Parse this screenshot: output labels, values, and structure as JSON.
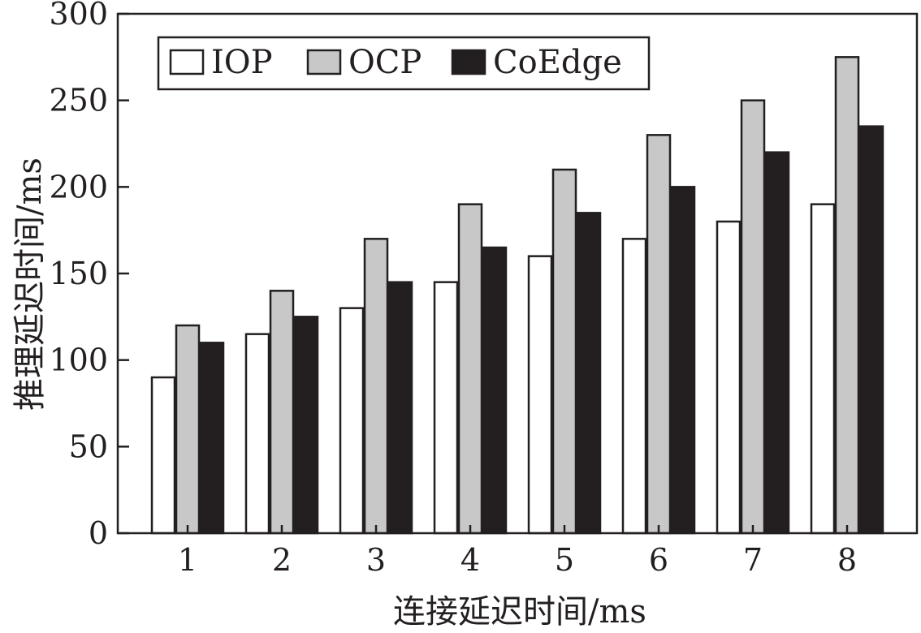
{
  "chart_data": {
    "type": "bar",
    "categories": [
      "1",
      "2",
      "3",
      "4",
      "5",
      "6",
      "7",
      "8"
    ],
    "series": [
      {
        "name": "IOP",
        "color": "#ffffff",
        "values": [
          90,
          115,
          130,
          145,
          160,
          170,
          180,
          190
        ]
      },
      {
        "name": "OCP",
        "color": "#c8c8c8",
        "values": [
          120,
          140,
          170,
          190,
          210,
          230,
          250,
          275
        ]
      },
      {
        "name": "CoEdge",
        "color": "#231f20",
        "values": [
          110,
          125,
          145,
          165,
          185,
          200,
          220,
          235
        ]
      }
    ],
    "xlabel": "连接延迟时间/ms",
    "ylabel": "推理延迟时间/ms",
    "ylim": [
      0,
      300
    ],
    "yticks": [
      0,
      50,
      100,
      150,
      200,
      250,
      300
    ],
    "grid": false,
    "legend_position": "top-left"
  }
}
